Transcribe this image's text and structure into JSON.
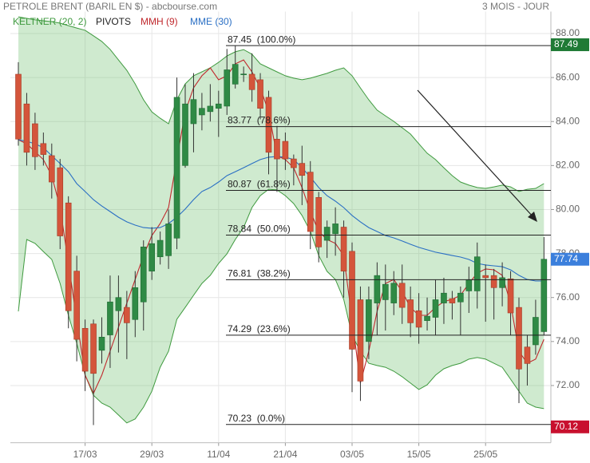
{
  "chart_data": {
    "type": "candlestick",
    "title": "PETROLE BRENT (BARIL EN $) - abcbourse.com",
    "subtitle": "3 MOIS - JOUR",
    "grid": true,
    "categories": [
      null,
      null,
      null,
      null,
      null,
      null,
      null,
      null,
      "17/03",
      null,
      null,
      null,
      null,
      null,
      null,
      null,
      "29/03",
      null,
      null,
      null,
      null,
      null,
      null,
      null,
      "11/04",
      null,
      null,
      null,
      null,
      null,
      null,
      null,
      "21/04",
      null,
      null,
      null,
      null,
      null,
      null,
      null,
      "03/05",
      null,
      null,
      null,
      null,
      null,
      null,
      null,
      "15/05",
      null,
      null,
      null,
      null,
      null,
      null,
      null,
      "25/05",
      null,
      null,
      null,
      null,
      null,
      null,
      null
    ],
    "ylim": [
      69.4,
      89.0
    ],
    "yticks": [
      {
        "value": 72,
        "label": "72.00"
      },
      {
        "value": 74,
        "label": "74.00"
      },
      {
        "value": 76,
        "label": "76.00"
      },
      {
        "value": 78,
        "label": "78.00"
      },
      {
        "value": 80,
        "label": "80.00"
      },
      {
        "value": 82,
        "label": "82.00"
      },
      {
        "value": 84,
        "label": "84.00"
      },
      {
        "value": 86,
        "label": "86.00"
      },
      {
        "value": 88,
        "label": "88.00"
      }
    ],
    "up_color": "#2f8a45",
    "down_color": "#d4553b",
    "ohlc": {
      "open": [
        86.15,
        84.8,
        83.9,
        83.0,
        82.45,
        81.9,
        80.3,
        77.2,
        74.6,
        74.8,
        73.6,
        74.3,
        75.4,
        75.55,
        75.0,
        75.8,
        77.2,
        77.85,
        77.9,
        78.7,
        82.0,
        83.9,
        84.3,
        84.45,
        84.6,
        84.7,
        85.7,
        86.15,
        86.15,
        85.9,
        85.1,
        83.2,
        83.1,
        82.3,
        82.1,
        81.7,
        80.55,
        78.6,
        78.9,
        79.2,
        78.1,
        75.9,
        74.0,
        75.75,
        75.9,
        75.75,
        76.65,
        75.9,
        75.4,
        74.95,
        75.1,
        75.75,
        75.95,
        75.8,
        76.3,
        76.3,
        77.0,
        77.0,
        76.45,
        76.85,
        75.55,
        73.75,
        73.85,
        74.45
      ],
      "high": [
        86.7,
        85.3,
        84.4,
        83.5,
        83.0,
        82.3,
        80.6,
        77.9,
        75.0,
        75.0,
        75.1,
        77.0,
        77.0,
        76.3,
        77.2,
        78.6,
        79.2,
        79.0,
        80.0,
        86.0,
        85.7,
        86.2,
        85.3,
        85.7,
        85.4,
        87.3,
        87.45,
        86.5,
        87.1,
        86.2,
        85.4,
        83.8,
        83.5,
        82.5,
        82.9,
        82.2,
        80.8,
        79.5,
        80.1,
        79.5,
        78.5,
        76.5,
        76.5,
        77.6,
        77.5,
        77.2,
        77.5,
        76.5,
        76.2,
        76.0,
        76.8,
        76.9,
        76.3,
        76.5,
        77.4,
        78.5,
        77.5,
        77.3,
        77.6,
        77.2,
        76.0,
        74.3,
        75.9,
        78.75
      ],
      "low": [
        82.9,
        82.0,
        81.8,
        82.0,
        80.5,
        78.2,
        74.6,
        73.1,
        71.75,
        70.2,
        73.0,
        72.8,
        73.5,
        73.2,
        74.2,
        74.5,
        76.8,
        77.5,
        77.3,
        78.2,
        81.9,
        82.6,
        83.6,
        84.0,
        83.3,
        84.3,
        85.5,
        85.8,
        84.9,
        84.1,
        81.6,
        80.8,
        81.8,
        81.1,
        80.2,
        78.2,
        77.6,
        77.8,
        77.9,
        76.0,
        71.7,
        71.3,
        73.2,
        74.3,
        74.5,
        75.2,
        74.8,
        74.2,
        73.9,
        74.5,
        74.3,
        74.8,
        75.0,
        74.3,
        75.3,
        75.5,
        74.9,
        75.0,
        75.6,
        74.3,
        71.2,
        72.0,
        73.4,
        74.3
      ],
      "close": [
        83.2,
        82.6,
        82.4,
        82.5,
        81.25,
        78.8,
        75.4,
        74.1,
        72.65,
        72.55,
        74.2,
        75.8,
        76.0,
        74.85,
        76.45,
        78.3,
        78.45,
        78.6,
        79.35,
        85.1,
        84.8,
        85.0,
        84.6,
        84.7,
        84.8,
        86.35,
        86.6,
        86.16,
        85.45,
        84.6,
        82.6,
        82.3,
        82.3,
        81.9,
        81.55,
        79.0,
        78.3,
        79.2,
        79.35,
        77.2,
        73.65,
        72.2,
        75.9,
        77.0,
        76.6,
        76.65,
        75.55,
        74.85,
        74.65,
        75.15,
        75.9,
        76.2,
        75.75,
        76.2,
        76.8,
        77.85,
        76.9,
        76.45,
        76.9,
        75.3,
        72.75,
        73.0,
        75.1,
        77.74
      ]
    },
    "series": [
      {
        "name": "KELTNER (20, 2)",
        "color": "#3f9a3f",
        "upper": [
          88.76,
          88.69,
          88.62,
          88.58,
          88.54,
          88.47,
          88.36,
          88.25,
          88.15,
          87.9,
          87.64,
          87.28,
          86.8,
          86.33,
          85.71,
          84.99,
          84.44,
          84.15,
          83.9,
          84.99,
          85.71,
          86.08,
          86.26,
          86.44,
          86.69,
          86.98,
          87.17,
          87.27,
          87.06,
          86.62,
          86.44,
          86.26,
          86.08,
          85.97,
          85.9,
          85.97,
          86.08,
          86.19,
          86.33,
          86.44,
          86.08,
          85.53,
          84.99,
          84.52,
          84.26,
          84.01,
          83.72,
          83.43,
          82.99,
          82.56,
          82.27,
          81.9,
          81.54,
          81.25,
          81.11,
          81.0,
          80.96,
          81.03,
          81.11,
          81.03,
          80.82,
          80.92,
          80.96,
          81.18
        ],
        "lower": [
          75.37,
          78.64,
          78.46,
          78.09,
          77.73,
          76.64,
          75.19,
          73.92,
          72.47,
          71.56,
          71.2,
          71.02,
          70.66,
          70.3,
          70.48,
          71.02,
          71.74,
          72.83,
          73.56,
          75.01,
          75.55,
          76.1,
          76.64,
          77.01,
          77.55,
          77.99,
          78.64,
          79.18,
          80.09,
          80.63,
          80.92,
          80.89,
          80.63,
          80.27,
          79.73,
          79.0,
          77.91,
          77.19,
          76.82,
          75.92,
          74.28,
          73.56,
          73.01,
          72.91,
          72.83,
          72.65,
          72.4,
          72.11,
          71.82,
          72.03,
          72.47,
          72.76,
          72.91,
          73.01,
          73.2,
          73.27,
          73.2,
          73.01,
          72.83,
          72.29,
          71.74,
          71.2,
          71.02,
          70.95
        ]
      },
      {
        "name": "PIVOTS",
        "color": "#222222",
        "levels": [
          {
            "value": 87.45,
            "label": "87.45  (100.0%)"
          },
          {
            "value": 83.77,
            "label": "83.77  (78.6%)"
          },
          {
            "value": 80.87,
            "label": "80.87  (61.8%)"
          },
          {
            "value": 78.84,
            "label": "78.84  (50.0%)"
          },
          {
            "value": 76.81,
            "label": "76.81  (38.2%)"
          },
          {
            "value": 74.29,
            "label": "74.29  (23.6%)"
          },
          {
            "value": 70.23,
            "label": "70.23  (0.0%)"
          }
        ]
      },
      {
        "name": "MMH (9)",
        "color": "#c0282d",
        "values": [
          83.17,
          82.99,
          82.63,
          82.27,
          81.54,
          80.09,
          77.55,
          75.01,
          72.47,
          71.64,
          72.47,
          73.56,
          74.65,
          75.74,
          76.82,
          77.91,
          78.82,
          79.36,
          80.09,
          82.27,
          84.44,
          85.53,
          86.08,
          86.44,
          85.9,
          86.08,
          86.62,
          86.8,
          86.26,
          85.53,
          84.44,
          82.45,
          82.27,
          81.9,
          81.0,
          79.91,
          79.0,
          78.64,
          78.46,
          77.91,
          75.01,
          72.11,
          73.56,
          75.37,
          76.64,
          76.82,
          76.28,
          75.55,
          75.19,
          75.19,
          75.55,
          75.81,
          75.92,
          76.1,
          76.64,
          77.11,
          77.3,
          77.26,
          77.01,
          75.74,
          73.56,
          73.01,
          73.2,
          74.1
        ]
      },
      {
        "name": "MME (30)",
        "color": "#2a6fc4",
        "values": [
          83.17,
          83.1,
          82.99,
          82.81,
          82.45,
          82.09,
          81.72,
          81.18,
          80.82,
          80.45,
          80.16,
          79.91,
          79.65,
          79.44,
          79.29,
          79.18,
          79.15,
          79.18,
          79.36,
          79.65,
          80.02,
          80.45,
          80.82,
          81.0,
          81.25,
          81.54,
          81.72,
          81.9,
          82.09,
          82.27,
          82.38,
          82.41,
          82.38,
          82.27,
          81.9,
          81.47,
          81.0,
          80.63,
          80.38,
          80.09,
          79.73,
          79.44,
          79.18,
          79.0,
          78.82,
          78.71,
          78.57,
          78.42,
          78.28,
          78.17,
          78.06,
          77.99,
          77.91,
          77.84,
          77.73,
          77.55,
          77.48,
          77.44,
          77.4,
          77.26,
          77.01,
          76.82,
          76.75,
          76.75
        ]
      }
    ],
    "price_tags": [
      {
        "value": 87.49,
        "label": "87.49",
        "color": "#1f7a35"
      },
      {
        "value": 77.74,
        "label": "77.74",
        "color": "#3b7fdc"
      },
      {
        "value": 70.12,
        "label": "70.12",
        "color": "#c8102e"
      }
    ]
  }
}
